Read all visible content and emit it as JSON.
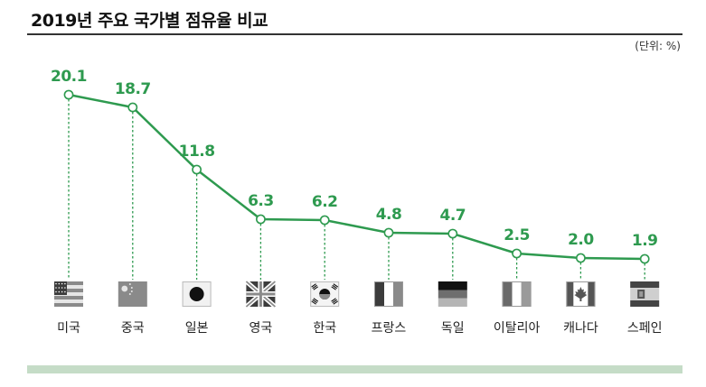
{
  "title": "2019년 주요 국가별 점유율 비교",
  "unit": "(단위: %)",
  "colors": {
    "accent": "#2e9a4f",
    "band": "#c5dcc7"
  },
  "chart_data": {
    "type": "line",
    "categories": [
      "미국",
      "중국",
      "일본",
      "영국",
      "한국",
      "프랑스",
      "독일",
      "이탈리아",
      "캐나다",
      "스페인"
    ],
    "flags": [
      "us-flag-icon",
      "china-flag-icon",
      "japan-flag-icon",
      "uk-flag-icon",
      "korea-flag-icon",
      "france-flag-icon",
      "germany-flag-icon",
      "italy-flag-icon",
      "canada-flag-icon",
      "spain-flag-icon"
    ],
    "values": [
      20.1,
      18.7,
      11.8,
      6.3,
      6.2,
      4.8,
      4.7,
      2.5,
      2.0,
      1.9
    ],
    "value_labels": [
      "20.1",
      "18.7",
      "11.8",
      "6.3",
      "6.2",
      "4.8",
      "4.7",
      "2.5",
      "2.0",
      "1.9"
    ],
    "ylim": [
      0,
      20.1
    ],
    "grid": false,
    "legend": "none"
  }
}
